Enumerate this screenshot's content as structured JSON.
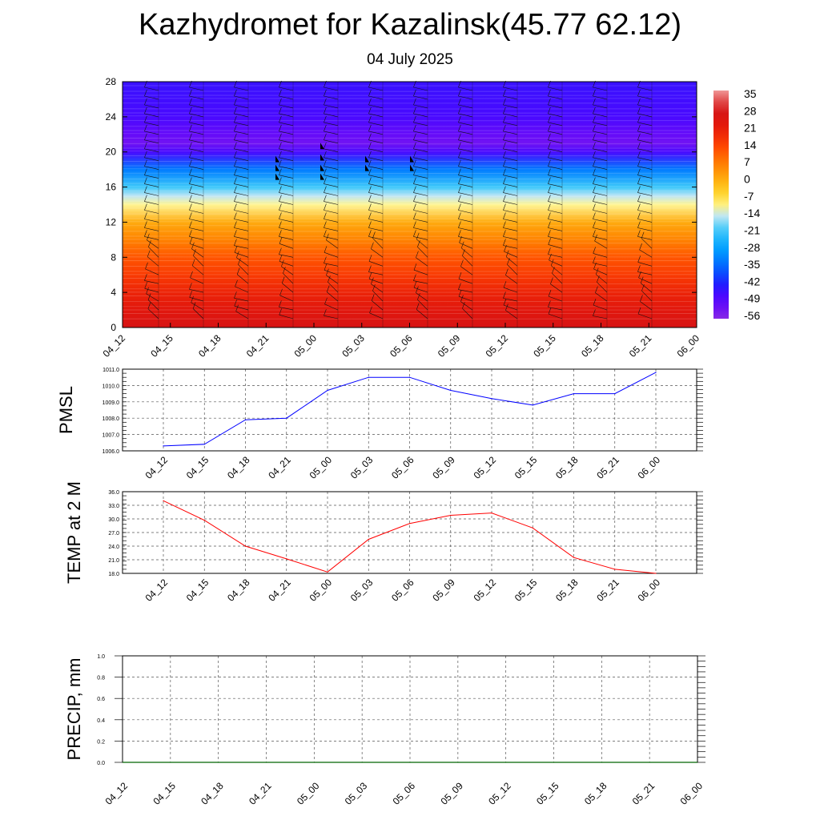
{
  "header": {
    "title": "Kazhydromet for Kazalinsk(45.77 62.12)",
    "subtitle": "04 July 2025"
  },
  "chart_data": [
    {
      "type": "heatmap",
      "title": "",
      "xlabel": "",
      "ylabel": "",
      "x_ticks": [
        "04_12",
        "04_15",
        "04_18",
        "04_21",
        "05_00",
        "05_03",
        "05_06",
        "05_09",
        "05_12",
        "05_15",
        "05_18",
        "05_21",
        "06_00"
      ],
      "y_ticks": [
        0,
        4,
        8,
        12,
        16,
        20,
        24,
        28
      ],
      "ylim": [
        0,
        28
      ],
      "colorbar": {
        "labels": [
          35,
          28,
          21,
          14,
          7,
          0,
          -7,
          -14,
          -21,
          -28,
          -35,
          -42,
          -49,
          -56
        ],
        "min": -60,
        "max": 38
      },
      "temperature_profile": [
        {
          "y": 0,
          "t": 28
        },
        {
          "y": 2,
          "t": 24
        },
        {
          "y": 4,
          "t": 20
        },
        {
          "y": 6,
          "t": 16
        },
        {
          "y": 8,
          "t": 12
        },
        {
          "y": 10,
          "t": 6
        },
        {
          "y": 12,
          "t": 0
        },
        {
          "y": 14,
          "t": -12
        },
        {
          "y": 15,
          "t": -16
        },
        {
          "y": 16,
          "t": -22
        },
        {
          "y": 18,
          "t": -35
        },
        {
          "y": 20,
          "t": -50
        },
        {
          "y": 21,
          "t": -56
        },
        {
          "y": 22,
          "t": -54
        },
        {
          "y": 24,
          "t": -50
        },
        {
          "y": 28,
          "t": -48
        }
      ],
      "wind_barb_levels": [
        1,
        2,
        3,
        4,
        5,
        6,
        7,
        8,
        9,
        10,
        11,
        12,
        13,
        14,
        15,
        16,
        17,
        18,
        19,
        20,
        21,
        22,
        23,
        24,
        25,
        26,
        27
      ]
    },
    {
      "type": "line",
      "ylabel": "PMSL",
      "categories": [
        "04_12",
        "04_15",
        "04_18",
        "04_21",
        "05_00",
        "05_03",
        "05_06",
        "05_09",
        "05_12",
        "05_15",
        "05_18",
        "05_21",
        "06_00"
      ],
      "series": [
        {
          "values": [
            1006.3,
            1006.4,
            1007.9,
            1008.0,
            1009.7,
            1010.5,
            1010.5,
            1009.7,
            1009.2,
            1008.8,
            1009.5,
            1009.5,
            1010.8
          ],
          "color": "#0000ff"
        }
      ],
      "ylim": [
        1006.0,
        1011.0
      ],
      "y_ticks": [
        "1006.0",
        "1007.0",
        "1008.0",
        "1009.0",
        "1010.0",
        "1011.0"
      ]
    },
    {
      "type": "line",
      "ylabel": "TEMP at 2 M",
      "categories": [
        "04_12",
        "04_15",
        "04_18",
        "04_21",
        "05_00",
        "05_03",
        "05_06",
        "05_09",
        "05_12",
        "05_15",
        "05_18",
        "05_21",
        "06_00"
      ],
      "series": [
        {
          "values": [
            34.0,
            29.7,
            24.0,
            21.2,
            18.3,
            25.5,
            29.0,
            30.8,
            31.3,
            28.0,
            21.5,
            18.9,
            18.0
          ],
          "color": "#ff0000"
        }
      ],
      "ylim": [
        18.0,
        36.0
      ],
      "y_ticks": [
        "18.0",
        "21.0",
        "24.0",
        "27.0",
        "30.0",
        "33.0",
        "36.0"
      ]
    },
    {
      "type": "line",
      "ylabel": "PRECIP, mm",
      "categories": [
        "04_12",
        "04_15",
        "04_18",
        "04_21",
        "05_00",
        "05_03",
        "05_06",
        "05_09",
        "05_12",
        "05_15",
        "05_18",
        "05_21",
        "06_00"
      ],
      "series": [
        {
          "values": [
            0,
            0,
            0,
            0,
            0,
            0,
            0,
            0,
            0,
            0,
            0,
            0,
            0
          ],
          "color": "#006400"
        }
      ],
      "ylim": [
        0.0,
        1.0
      ],
      "y_ticks": [
        "0.0",
        "0.2",
        "0.4",
        "0.6",
        "0.8",
        "1.0"
      ]
    }
  ]
}
